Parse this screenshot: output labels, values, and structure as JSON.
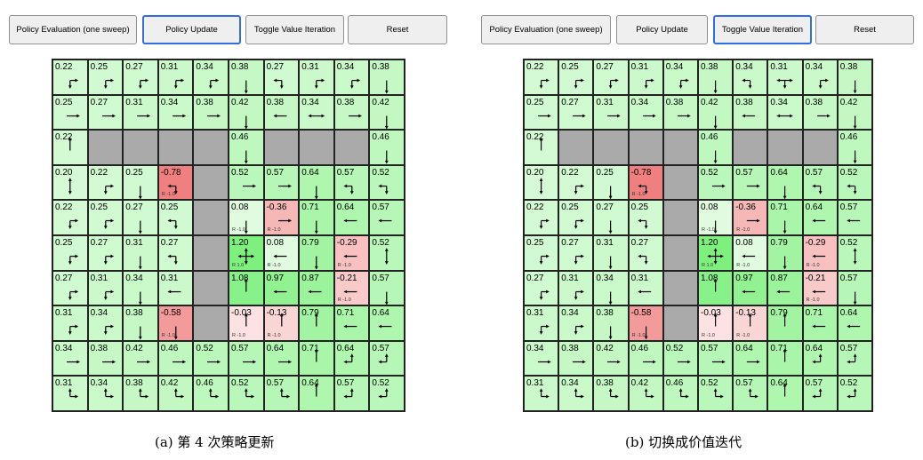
{
  "buttons": {
    "eval": "Policy Evaluation (one sweep)",
    "update": "Policy Update",
    "toggle": "Toggle Value Iteration",
    "reset": "Reset"
  },
  "colors": {
    "active_border": "#2f6fde",
    "wall": "#aaaaaa",
    "positive": "#7ef07e",
    "negative": "#f08080"
  },
  "panels": [
    {
      "caption": "(a) 第 4 次策略更新",
      "active_button": "update",
      "cells": [
        [
          [
            "0.22",
            "DR"
          ],
          [
            "0.25",
            "DR"
          ],
          [
            "0.27",
            "DR"
          ],
          [
            "0.31",
            "DR"
          ],
          [
            "0.34",
            "DR"
          ],
          [
            "0.38",
            "D"
          ],
          [
            "0.27",
            "LD"
          ],
          [
            "0.31",
            "DR"
          ],
          [
            "0.34",
            "DR"
          ],
          [
            "0.38",
            "D"
          ]
        ],
        [
          [
            "0.25",
            "R"
          ],
          [
            "0.27",
            "R"
          ],
          [
            "0.31",
            "R"
          ],
          [
            "0.34",
            "R"
          ],
          [
            "0.38",
            "R"
          ],
          [
            "0.42",
            "D"
          ],
          [
            "0.38",
            "L"
          ],
          [
            "0.34",
            "LR"
          ],
          [
            "0.38",
            "R"
          ],
          [
            "0.42",
            "D"
          ]
        ],
        [
          [
            "0.22",
            "U"
          ],
          null,
          null,
          null,
          null,
          [
            "0.46",
            "D"
          ],
          null,
          null,
          null,
          [
            "0.46",
            "D"
          ]
        ],
        [
          [
            "0.20",
            "UD"
          ],
          [
            "0.22",
            "DR"
          ],
          [
            "0.25",
            "D"
          ],
          [
            "-0.78",
            "LD",
            "R -1.0"
          ],
          null,
          [
            "0.52",
            "R"
          ],
          [
            "0.57",
            "R"
          ],
          [
            "0.64",
            "D"
          ],
          [
            "0.57",
            "LD"
          ],
          [
            "0.52",
            "LD"
          ]
        ],
        [
          [
            "0.22",
            "DR"
          ],
          [
            "0.25",
            "DR"
          ],
          [
            "0.27",
            "D"
          ],
          [
            "0.25",
            "LD"
          ],
          null,
          [
            "0.08",
            "D",
            "R -1.0"
          ],
          [
            "-0.36",
            "R",
            "R -1.0"
          ],
          [
            "0.71",
            "D"
          ],
          [
            "0.64",
            "L"
          ],
          [
            "0.57",
            "L"
          ]
        ],
        [
          [
            "0.25",
            "DR"
          ],
          [
            "0.27",
            "DR"
          ],
          [
            "0.31",
            "D"
          ],
          [
            "0.27",
            "LD"
          ],
          null,
          [
            "1.20",
            "UDLR",
            "R 1.0"
          ],
          [
            "0.08",
            "L",
            "R -1.0"
          ],
          [
            "0.79",
            "D"
          ],
          [
            "-0.29",
            "L",
            "R -1.0"
          ],
          [
            "0.52",
            "UD"
          ]
        ],
        [
          [
            "0.27",
            "DR"
          ],
          [
            "0.31",
            "DR"
          ],
          [
            "0.34",
            "D"
          ],
          [
            "0.31",
            "L"
          ],
          null,
          [
            "1.08",
            "U"
          ],
          [
            "0.97",
            "L"
          ],
          [
            "0.87",
            "L"
          ],
          [
            "-0.21",
            "L",
            "R -1.0"
          ],
          [
            "0.57",
            "D"
          ]
        ],
        [
          [
            "0.31",
            "DR"
          ],
          [
            "0.34",
            "DR"
          ],
          [
            "0.38",
            "D"
          ],
          [
            "-0.58",
            "D",
            "R -1.0"
          ],
          null,
          [
            "-0.03",
            "U",
            "R -1.0"
          ],
          [
            "-0.13",
            "U",
            "R -1.0"
          ],
          [
            "0.79",
            "U"
          ],
          [
            "0.71",
            "L"
          ],
          [
            "0.64",
            "L"
          ]
        ],
        [
          [
            "0.34",
            "R"
          ],
          [
            "0.38",
            "R"
          ],
          [
            "0.42",
            "R"
          ],
          [
            "0.46",
            "R"
          ],
          [
            "0.52",
            "R"
          ],
          [
            "0.57",
            "R"
          ],
          [
            "0.64",
            "R"
          ],
          [
            "0.71",
            "U"
          ],
          [
            "0.64",
            "UL"
          ],
          [
            "0.57",
            "UL"
          ]
        ],
        [
          [
            "0.31",
            "UR"
          ],
          [
            "0.34",
            "UR"
          ],
          [
            "0.38",
            "UR"
          ],
          [
            "0.42",
            "UR"
          ],
          [
            "0.46",
            "UR"
          ],
          [
            "0.52",
            "UR"
          ],
          [
            "0.57",
            "UR"
          ],
          [
            "0.64",
            "U"
          ],
          [
            "0.57",
            "UL"
          ],
          [
            "0.52",
            "UL"
          ]
        ]
      ]
    },
    {
      "caption": "(b) 切换成价值迭代",
      "active_button": "toggle",
      "cells": [
        [
          [
            "0.22",
            "DR"
          ],
          [
            "0.25",
            "DR"
          ],
          [
            "0.27",
            "DR"
          ],
          [
            "0.31",
            "DR"
          ],
          [
            "0.34",
            "DR"
          ],
          [
            "0.38",
            "D"
          ],
          [
            "0.34",
            "LD"
          ],
          [
            "0.31",
            "LDR"
          ],
          [
            "0.34",
            "DR"
          ],
          [
            "0.38",
            "D"
          ]
        ],
        [
          [
            "0.25",
            "R"
          ],
          [
            "0.27",
            "R"
          ],
          [
            "0.31",
            "R"
          ],
          [
            "0.34",
            "R"
          ],
          [
            "0.38",
            "R"
          ],
          [
            "0.42",
            "D"
          ],
          [
            "0.38",
            "L"
          ],
          [
            "0.34",
            "LR"
          ],
          [
            "0.38",
            "R"
          ],
          [
            "0.42",
            "D"
          ]
        ],
        [
          [
            "0.22",
            "U"
          ],
          null,
          null,
          null,
          null,
          [
            "0.46",
            "D"
          ],
          null,
          null,
          null,
          [
            "0.46",
            "D"
          ]
        ],
        [
          [
            "0.20",
            "UD"
          ],
          [
            "0.22",
            "DR"
          ],
          [
            "0.25",
            "D"
          ],
          [
            "-0.78",
            "LD",
            "R -1.0"
          ],
          null,
          [
            "0.52",
            "R"
          ],
          [
            "0.57",
            "R"
          ],
          [
            "0.64",
            "D"
          ],
          [
            "0.57",
            "LD"
          ],
          [
            "0.52",
            "LD"
          ]
        ],
        [
          [
            "0.22",
            "DR"
          ],
          [
            "0.25",
            "DR"
          ],
          [
            "0.27",
            "D"
          ],
          [
            "0.25",
            "LD"
          ],
          null,
          [
            "0.08",
            "D",
            "R -1.0"
          ],
          [
            "-0.36",
            "R",
            "R -1.0"
          ],
          [
            "0.71",
            "D"
          ],
          [
            "0.64",
            "L"
          ],
          [
            "0.57",
            "L"
          ]
        ],
        [
          [
            "0.25",
            "DR"
          ],
          [
            "0.27",
            "DR"
          ],
          [
            "0.31",
            "D"
          ],
          [
            "0.27",
            "LD"
          ],
          null,
          [
            "1.20",
            "UDLR",
            "R 1.0"
          ],
          [
            "0.08",
            "L",
            "R -1.0"
          ],
          [
            "0.79",
            "D"
          ],
          [
            "-0.29",
            "L",
            "R -1.0"
          ],
          [
            "0.52",
            "UD"
          ]
        ],
        [
          [
            "0.27",
            "DR"
          ],
          [
            "0.31",
            "DR"
          ],
          [
            "0.34",
            "D"
          ],
          [
            "0.31",
            "L"
          ],
          null,
          [
            "1.08",
            "U"
          ],
          [
            "0.97",
            "L"
          ],
          [
            "0.87",
            "L"
          ],
          [
            "-0.21",
            "L",
            "R -1.0"
          ],
          [
            "0.57",
            "D"
          ]
        ],
        [
          [
            "0.31",
            "DR"
          ],
          [
            "0.34",
            "DR"
          ],
          [
            "0.38",
            "D"
          ],
          [
            "-0.58",
            "D",
            "R -1.0"
          ],
          null,
          [
            "-0.03",
            "U",
            "R -1.0"
          ],
          [
            "-0.13",
            "U",
            "R -1.0"
          ],
          [
            "0.79",
            "U"
          ],
          [
            "0.71",
            "L"
          ],
          [
            "0.64",
            "L"
          ]
        ],
        [
          [
            "0.34",
            "R"
          ],
          [
            "0.38",
            "R"
          ],
          [
            "0.42",
            "R"
          ],
          [
            "0.46",
            "R"
          ],
          [
            "0.52",
            "R"
          ],
          [
            "0.57",
            "R"
          ],
          [
            "0.64",
            "R"
          ],
          [
            "0.71",
            "U"
          ],
          [
            "0.64",
            "UL"
          ],
          [
            "0.57",
            "UL"
          ]
        ],
        [
          [
            "0.31",
            "UR"
          ],
          [
            "0.34",
            "UR"
          ],
          [
            "0.38",
            "UR"
          ],
          [
            "0.42",
            "UR"
          ],
          [
            "0.46",
            "UR"
          ],
          [
            "0.52",
            "UR"
          ],
          [
            "0.57",
            "UR"
          ],
          [
            "0.64",
            "U"
          ],
          [
            "0.57",
            "UL"
          ],
          [
            "0.52",
            "UL"
          ]
        ]
      ]
    }
  ]
}
